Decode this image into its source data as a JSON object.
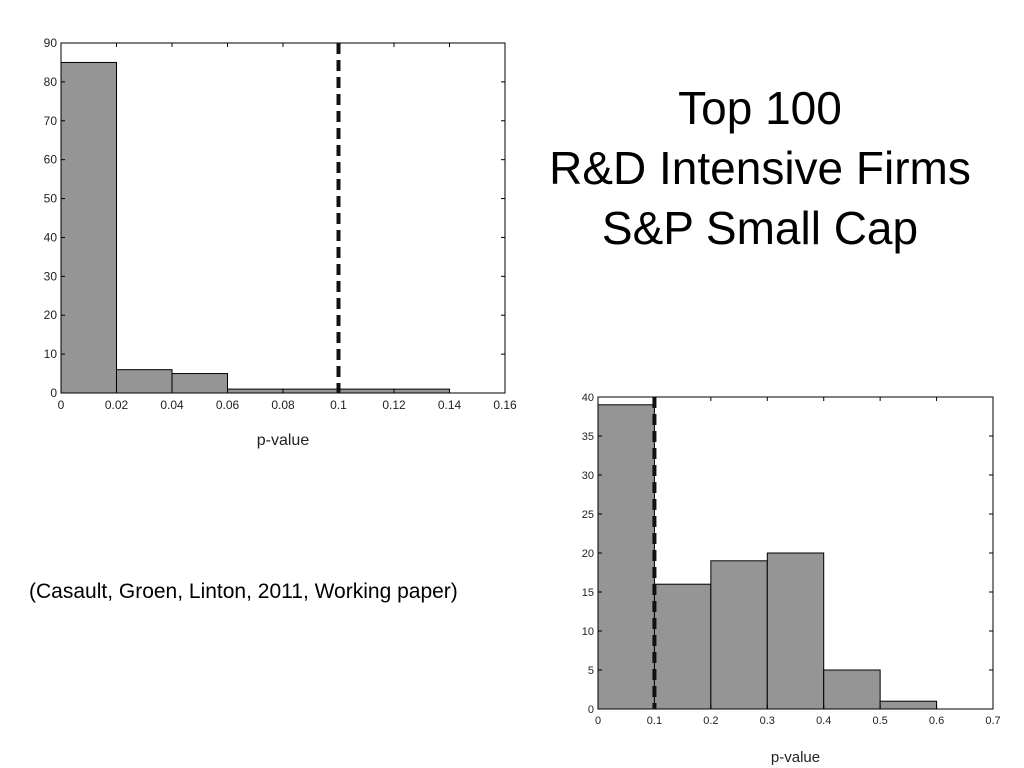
{
  "title_lines": [
    "Top 100",
    "R&D Intensive Firms",
    "S&P Small Cap"
  ],
  "citation": "(Casault, Groen, Linton, 2011, Working paper)",
  "chart_data": [
    {
      "type": "bar",
      "subtype": "histogram",
      "bin_edges": [
        0,
        0.02,
        0.04,
        0.06,
        0.08,
        0.1,
        0.12,
        0.14
      ],
      "values": [
        85,
        6,
        5,
        1,
        1,
        1,
        1
      ],
      "xlabel": "p-value",
      "ylabel": "",
      "xlim": [
        0,
        0.16
      ],
      "ylim": [
        0,
        90
      ],
      "xticks": [
        "0",
        "0.02",
        "0.04",
        "0.06",
        "0.08",
        "0.1",
        "0.12",
        "0.14",
        "0.16"
      ],
      "yticks": [
        "0",
        "10",
        "20",
        "30",
        "40",
        "50",
        "60",
        "70",
        "80",
        "90"
      ],
      "reference_line_x": 0.1,
      "bar_color": "#959595",
      "grid": false
    },
    {
      "type": "bar",
      "subtype": "histogram",
      "bin_edges": [
        0,
        0.1,
        0.2,
        0.3,
        0.4,
        0.5,
        0.6
      ],
      "values": [
        39,
        16,
        19,
        20,
        5,
        1
      ],
      "xlabel": "p-value",
      "ylabel": "",
      "xlim": [
        0,
        0.7
      ],
      "ylim": [
        0,
        40
      ],
      "xticks": [
        "0",
        "0.1",
        "0.2",
        "0.3",
        "0.4",
        "0.5",
        "0.6",
        "0.7"
      ],
      "yticks": [
        "0",
        "5",
        "10",
        "15",
        "20",
        "25",
        "30",
        "35",
        "40"
      ],
      "reference_line_x": 0.1,
      "bar_color": "#959595",
      "grid": false
    }
  ]
}
